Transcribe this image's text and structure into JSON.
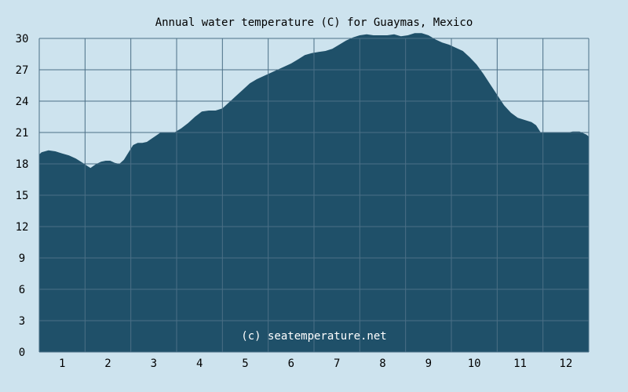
{
  "chart_data": {
    "type": "area",
    "title": "Annual water temperature (C) for Guaymas, Mexico",
    "xlabel": "",
    "ylabel": "",
    "x_tick_labels": [
      "1",
      "2",
      "3",
      "4",
      "5",
      "6",
      "7",
      "8",
      "9",
      "10",
      "11",
      "12"
    ],
    "y_tick_labels": [
      "0",
      "3",
      "6",
      "9",
      "12",
      "15",
      "18",
      "21",
      "24",
      "27",
      "30"
    ],
    "ylim": [
      0,
      30
    ],
    "xlim": [
      0.5,
      12.5
    ],
    "grid": true,
    "legend": "none",
    "credit": "(c) seatemperature.net",
    "series": [
      {
        "x": [
          0.5,
          0.55,
          0.7,
          0.85,
          1.0,
          1.15,
          1.3,
          1.45,
          1.55,
          1.62,
          1.68,
          1.75,
          1.85,
          1.95,
          2.05,
          2.15,
          2.25,
          2.35,
          2.45,
          2.55,
          2.65,
          2.75,
          2.85,
          2.95,
          3.05,
          3.15,
          3.25,
          3.35,
          3.45,
          3.6,
          3.75,
          3.9,
          4.05,
          4.2,
          4.35,
          4.5,
          4.65,
          4.8,
          4.95,
          5.1,
          5.25,
          5.4,
          5.55,
          5.7,
          5.85,
          6.0,
          6.15,
          6.3,
          6.45,
          6.6,
          6.75,
          6.9,
          7.05,
          7.2,
          7.35,
          7.5,
          7.65,
          7.8,
          7.95,
          8.1,
          8.25,
          8.4,
          8.55,
          8.7,
          8.85,
          9.0,
          9.15,
          9.3,
          9.45,
          9.6,
          9.75,
          9.9,
          10.05,
          10.2,
          10.35,
          10.5,
          10.65,
          10.8,
          10.95,
          11.1,
          11.25,
          11.35,
          11.45,
          11.55,
          11.65,
          11.75,
          11.85,
          11.95,
          12.05,
          12.15,
          12.3,
          12.45,
          12.5
        ],
        "values": [
          18.9,
          19.1,
          19.3,
          19.2,
          19.0,
          18.8,
          18.5,
          18.1,
          17.8,
          17.6,
          17.8,
          18.0,
          18.2,
          18.3,
          18.3,
          18.1,
          18.0,
          18.4,
          19.1,
          19.8,
          20.0,
          20.0,
          20.1,
          20.4,
          20.7,
          21.0,
          21.0,
          21.0,
          21.0,
          21.4,
          21.9,
          22.5,
          23.0,
          23.1,
          23.1,
          23.3,
          23.9,
          24.5,
          25.1,
          25.7,
          26.1,
          26.4,
          26.7,
          27.0,
          27.3,
          27.6,
          28.0,
          28.4,
          28.6,
          28.7,
          28.8,
          29.0,
          29.4,
          29.8,
          30.1,
          30.3,
          30.4,
          30.3,
          30.3,
          30.3,
          30.4,
          30.2,
          30.3,
          30.5,
          30.5,
          30.3,
          29.9,
          29.6,
          29.4,
          29.1,
          28.8,
          28.2,
          27.5,
          26.6,
          25.6,
          24.6,
          23.6,
          22.9,
          22.4,
          22.2,
          22.0,
          21.7,
          21.0,
          21.0,
          21.0,
          21.0,
          21.0,
          21.0,
          21.0,
          21.1,
          21.1,
          20.8,
          20.6
        ]
      }
    ]
  },
  "colors": {
    "background": "#cde3ee",
    "area_fill": "#1f5069",
    "gridline": "#4b6f86",
    "text": "#000000",
    "credit_text": "#ffffff"
  }
}
